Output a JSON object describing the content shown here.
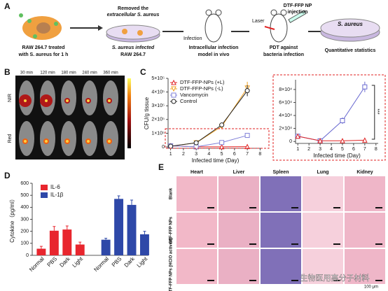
{
  "panel_a": {
    "label": "A",
    "cell_caption": [
      "RAW 264.7 treated",
      "with S. aureus for 1 h"
    ],
    "wash_caption": [
      "Removed the",
      "extracellular S. aureus"
    ],
    "dish_caption": [
      "S. aureus infected",
      "RAW 264.7"
    ],
    "infection": "Infection",
    "model_caption": [
      "Intracellular infection",
      "model in vivo"
    ],
    "laser": "Laser",
    "injection_caption": [
      "DTF-FFP NP",
      "injection"
    ],
    "pdt_caption": [
      "PDT against",
      "bacteria infection"
    ],
    "dish_label": "S. aureus",
    "stats_caption": "Quantitative statistics"
  },
  "panel_b": {
    "label": "B",
    "times": [
      "30 min",
      "120 min",
      "180 min",
      "240 min",
      "360 min"
    ],
    "rows": [
      "NIR",
      "Red"
    ]
  },
  "panel_c": {
    "label": "C"
  },
  "panel_d": {
    "label": "D"
  },
  "panel_e": {
    "label": "E",
    "columns": [
      "Heart",
      "Liver",
      "Spleen",
      "Lung",
      "Kidney"
    ],
    "rows": [
      "Blank",
      "DTF-FFP NPs",
      "DTF-FFP NPs (HClO actived)"
    ],
    "scale": "100 μm",
    "watermark": "生物医用高分子材料"
  },
  "chart_data": [
    {
      "type": "line",
      "xlabel": "Infected time (Day)",
      "ylabel": "CFU/g tissue",
      "x": [
        1,
        3,
        5,
        7
      ],
      "xlim": [
        0.8,
        8.2
      ],
      "xticks": [
        1,
        2,
        3,
        4,
        5,
        6,
        7,
        8
      ],
      "ylim": [
        -10000,
        500000
      ],
      "yticks": [
        0,
        {
          "value": 100000,
          "label": "1×10⁵"
        },
        {
          "value": 200000,
          "label": "2×10⁵"
        },
        {
          "value": 300000,
          "label": "3×10⁵"
        },
        {
          "value": 400000,
          "label": "4×10⁵"
        },
        {
          "value": 500000,
          "label": "5×10⁵"
        }
      ],
      "legend": "upper left",
      "series": [
        {
          "name": "DTF-FFP-NPs (+L)",
          "color": "#e02424",
          "marker": "triangle",
          "values": [
            8000,
            1000,
            1000,
            2000
          ],
          "errors": [
            1000,
            500,
            500,
            1000
          ]
        },
        {
          "name": "DTF-FFP-NPs (-L)",
          "color": "#f0a020",
          "marker": "triangle-down",
          "values": [
            5000,
            30000,
            150000,
            430000
          ],
          "errors": [
            2000,
            5000,
            15000,
            45000
          ]
        },
        {
          "name": "Vancomycin",
          "color": "#8080d8",
          "marker": "square",
          "values": [
            8000,
            1000,
            32000,
            84000
          ],
          "errors": [
            1000,
            500,
            5000,
            8000
          ]
        },
        {
          "name": "Control",
          "color": "#222222",
          "marker": "circle",
          "values": [
            5000,
            30000,
            160000,
            410000
          ],
          "errors": [
            2000,
            5000,
            15000,
            40000
          ]
        }
      ]
    },
    {
      "type": "line",
      "xlabel": "Infected time (Day)",
      "x": [
        1,
        3,
        5,
        7
      ],
      "xlim": [
        0.8,
        8.2
      ],
      "xticks": [
        1,
        2,
        3,
        4,
        5,
        6,
        7,
        8
      ],
      "ylim": [
        -3000,
        95000
      ],
      "yticks": [
        0,
        {
          "value": 20000,
          "label": "2×10⁴"
        },
        {
          "value": 40000,
          "label": "4×10⁴"
        },
        {
          "value": 60000,
          "label": "6×10⁴"
        },
        {
          "value": 80000,
          "label": "8×10⁴"
        }
      ],
      "annotation": "***",
      "series": [
        {
          "name": "Vancomycin",
          "color": "#6a6ad0",
          "marker": "square",
          "values": [
            8000,
            1000,
            32000,
            84000
          ],
          "errors": [
            1000,
            500,
            5000,
            8000
          ]
        },
        {
          "name": "DTF-FFP-NPs (+L)",
          "color": "#e02424",
          "marker": "triangle",
          "values": [
            8000,
            1000,
            1000,
            2000
          ],
          "errors": [
            1000,
            500,
            500,
            1000
          ]
        }
      ]
    },
    {
      "type": "bar",
      "ylabel": "Cytokine（pg/ml）",
      "categories": [
        "Normal",
        "PBS",
        "Dark",
        "Light"
      ],
      "ylim": [
        0,
        600
      ],
      "yticks": [
        0,
        100,
        200,
        300,
        400,
        500,
        600
      ],
      "legend": "upper left",
      "series": [
        {
          "name": "IL-6",
          "color": "#e8262e",
          "values": [
            55,
            205,
            215,
            90
          ],
          "errors": [
            20,
            35,
            30,
            20
          ]
        },
        {
          "name": "IL-1β",
          "color": "#2e48a8",
          "values": [
            130,
            470,
            420,
            175
          ],
          "errors": [
            12,
            25,
            40,
            25
          ]
        }
      ]
    }
  ]
}
